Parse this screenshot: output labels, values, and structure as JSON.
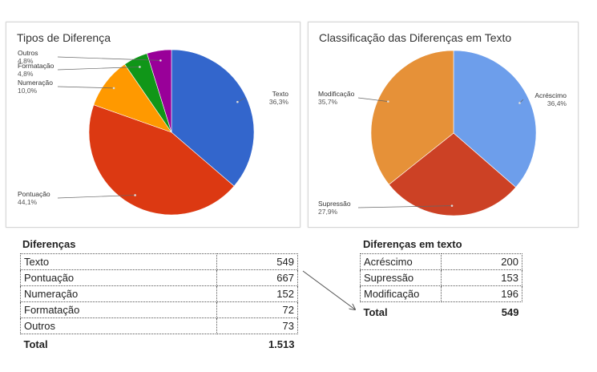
{
  "chart_data": [
    {
      "type": "pie",
      "title": "Tipos de Diferença",
      "slices": [
        {
          "label": "Texto",
          "value": 36.3,
          "pct": "36,3%",
          "color": "#3366cc"
        },
        {
          "label": "Pontuação",
          "value": 44.1,
          "pct": "44,1%",
          "color": "#dc3912"
        },
        {
          "label": "Numeração",
          "value": 10.0,
          "pct": "10,0%",
          "color": "#ff9900"
        },
        {
          "label": "Formatação",
          "value": 4.8,
          "pct": "4,8%",
          "color": "#109618"
        },
        {
          "label": "Outros",
          "value": 4.8,
          "pct": "4,8%",
          "color": "#990099"
        }
      ]
    },
    {
      "type": "pie",
      "title": "Classificação das Diferenças em Texto",
      "slices": [
        {
          "label": "Acréscimo",
          "value": 36.4,
          "pct": "36,4%",
          "color": "#6d9eeb"
        },
        {
          "label": "Supressão",
          "value": 27.9,
          "pct": "27,9%",
          "color": "#cc4125"
        },
        {
          "label": "Modificação",
          "value": 35.7,
          "pct": "35,7%",
          "color": "#e69138"
        }
      ]
    },
    {
      "type": "table",
      "title": "Diferenças",
      "rows": [
        {
          "label": "Texto",
          "value": "549"
        },
        {
          "label": "Pontuação",
          "value": "667"
        },
        {
          "label": "Numeração",
          "value": "152"
        },
        {
          "label": "Formatação",
          "value": "72"
        },
        {
          "label": "Outros",
          "value": "73"
        }
      ],
      "total": {
        "label": "Total",
        "value": "1.513"
      }
    },
    {
      "type": "table",
      "title": "Diferenças em texto",
      "rows": [
        {
          "label": "Acréscimo",
          "value": "200"
        },
        {
          "label": "Supressão",
          "value": "153"
        },
        {
          "label": "Modificação",
          "value": "196"
        }
      ],
      "total": {
        "label": "Total",
        "value": "549"
      }
    }
  ]
}
